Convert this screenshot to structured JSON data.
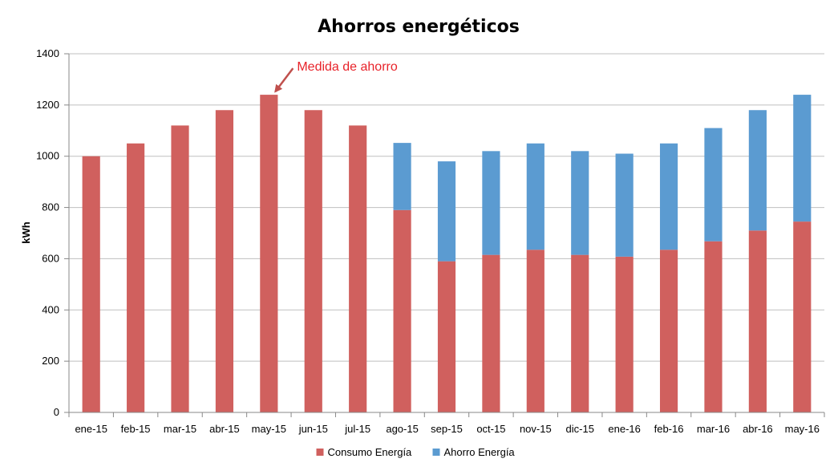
{
  "chart_data": {
    "type": "bar",
    "stacked": true,
    "title": "Ahorros energéticos",
    "xlabel": "",
    "ylabel": "kWh",
    "ylim": [
      0,
      1400
    ],
    "yticks": [
      0,
      200,
      400,
      600,
      800,
      1000,
      1200,
      1400
    ],
    "grid": true,
    "legend": "bottom",
    "categories": [
      "ene-15",
      "feb-15",
      "mar-15",
      "abr-15",
      "may-15",
      "jun-15",
      "jul-15",
      "ago-15",
      "sep-15",
      "oct-15",
      "nov-15",
      "dic-15",
      "ene-16",
      "feb-16",
      "mar-16",
      "abr-16",
      "may-16"
    ],
    "series": [
      {
        "name": "Consumo Energía",
        "color": "#d0605e",
        "values": [
          1000,
          1050,
          1120,
          1180,
          1240,
          1180,
          1120,
          790,
          590,
          615,
          635,
          615,
          608,
          635,
          668,
          710,
          745
        ]
      },
      {
        "name": "Ahorro Energía",
        "color": "#5b9bd1",
        "values": [
          0,
          0,
          0,
          0,
          0,
          0,
          0,
          262,
          390,
          405,
          415,
          405,
          402,
          415,
          442,
          470,
          495
        ]
      }
    ],
    "annotations": [
      {
        "text": "Medida de ahorro",
        "category": "may-15",
        "color": "#e8232a",
        "arrow_color": "#c0504d"
      }
    ]
  }
}
